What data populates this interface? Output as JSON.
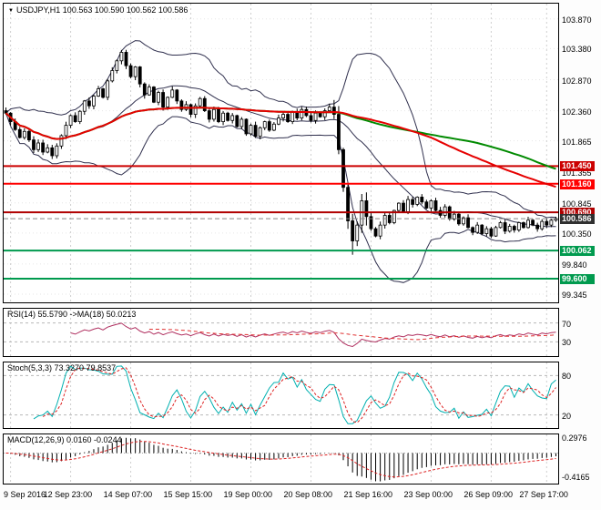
{
  "icons": {
    "marker": "▼"
  },
  "panels": {
    "main": {
      "title": "USDJPY,H1 100.563 100.590 100.562 100.586"
    },
    "rsi": {
      "title": "RSI(14) 55.5790 ->MA(18) 50.0213"
    },
    "stoch": {
      "title": "Stoch(5,3,3) 73.3270 79.8537"
    },
    "macd": {
      "title": "MACD(12,26,9) 0.0160 -0.0244"
    }
  },
  "chart_data": {
    "type": "candlestick",
    "symbol": "USDJPY",
    "timeframe": "H1",
    "ohlc_display": {
      "open": "100.563",
      "high": "100.590",
      "low": "100.562",
      "close": "100.586"
    },
    "y_ticks": [
      "103.870",
      "103.380",
      "102.870",
      "102.360",
      "101.865",
      "101.355",
      "100.845",
      "100.350",
      "99.840",
      "99.345"
    ],
    "y_range": [
      99.21,
      104.12
    ],
    "x_axis": {
      "labels": [
        "9 Sep 2016",
        "12 Sep 23:00",
        "14 Sep 07:00",
        "15 Sep 15:00",
        "19 Sep 00:00",
        "20 Sep 08:00",
        "21 Sep 16:00",
        "23 Sep 00:00",
        "26 Sep 09:00",
        "27 Sep 17:00"
      ],
      "indices": [
        1,
        14,
        27,
        40,
        53,
        66,
        79,
        92,
        105,
        117
      ]
    },
    "closes": [
      102.32,
      102.18,
      102.05,
      101.92,
      102.02,
      101.88,
      101.72,
      101.83,
      101.68,
      101.75,
      101.62,
      101.78,
      101.95,
      102.12,
      102.28,
      102.18,
      102.35,
      102.52,
      102.44,
      102.6,
      102.72,
      102.58,
      102.85,
      103.02,
      103.18,
      103.32,
      103.1,
      102.92,
      103.08,
      102.8,
      102.62,
      102.75,
      102.5,
      102.66,
      102.42,
      102.58,
      102.7,
      102.52,
      102.38,
      102.46,
      102.3,
      102.44,
      102.56,
      102.36,
      102.22,
      102.38,
      102.18,
      102.32,
      102.2,
      102.28,
      102.1,
      102.22,
      101.98,
      102.12,
      101.94,
      102.08,
      102.18,
      102.04,
      102.14,
      102.24,
      102.3,
      102.18,
      102.34,
      102.24,
      102.38,
      102.28,
      102.2,
      102.32,
      102.26,
      102.36,
      102.42,
      102.3,
      101.72,
      101.1,
      100.55,
      100.22,
      100.48,
      100.88,
      100.62,
      100.42,
      100.3,
      100.48,
      100.64,
      100.52,
      100.72,
      100.84,
      100.7,
      100.9,
      100.82,
      100.94,
      100.86,
      100.76,
      100.88,
      100.72,
      100.64,
      100.78,
      100.58,
      100.66,
      100.5,
      100.6,
      100.44,
      100.36,
      100.48,
      100.34,
      100.42,
      100.3,
      100.44,
      100.52,
      100.38,
      100.46,
      100.4,
      100.52,
      100.44,
      100.56,
      100.48,
      100.42,
      100.54,
      100.48,
      100.56,
      100.586
    ],
    "levels": [
      {
        "price": 101.45,
        "label": "101.450",
        "color": "#cc0000",
        "width": 2
      },
      {
        "price": 101.16,
        "label": "101.160",
        "color": "#ff0000",
        "width": 2
      },
      {
        "price": 100.69,
        "label": "100.690",
        "color": "#b00000",
        "width": 2
      },
      {
        "price": 100.062,
        "label": "100.062",
        "color": "#009a4e",
        "width": 2
      },
      {
        "price": 99.6,
        "label": "99.600",
        "color": "#009a4e",
        "width": 2
      }
    ],
    "current_price": {
      "value": 100.586,
      "label": "100.586",
      "box_color": "#2f2f2f"
    },
    "indicators": {
      "rsi": {
        "period": 14,
        "ma_period": 18,
        "levels": [
          "70",
          "30"
        ],
        "range": [
          0,
          100
        ]
      },
      "stoch": {
        "k": 5,
        "d": 3,
        "slowing": 3,
        "levels": [
          "80",
          "20"
        ],
        "range": [
          0,
          100
        ]
      },
      "macd": {
        "fast": 12,
        "slow": 26,
        "signal": 9,
        "y_ticks": [
          "0.2976",
          "-0.4165"
        ],
        "range": [
          -0.54,
          0.33
        ]
      }
    },
    "colors": {
      "bull": "#ffffff",
      "bear": "#000000",
      "wick": "#000000",
      "bollinger": "#30304e",
      "ma_fast": "#e60000",
      "ma_slow": "#008a00",
      "rsi": "#b03060",
      "rsi_ma": "#e03030",
      "stoch_k": "#00b0b0",
      "stoch_d": "#dd2222",
      "macd_hist": "#000000",
      "macd_signal": "#dd2222",
      "grid": "#cfcfcf",
      "level_dash": "#b8b8b8"
    }
  }
}
